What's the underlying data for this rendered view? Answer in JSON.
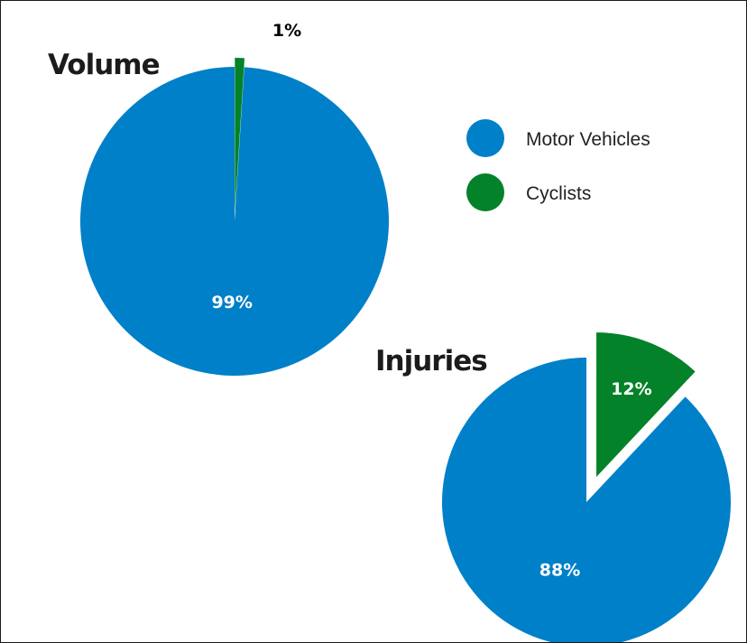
{
  "colors": {
    "motor_vehicles": "#0080c8",
    "cyclists": "#048229",
    "label_inside": "#ffffff",
    "label_outside": "#000000"
  },
  "chart_data": [
    {
      "type": "pie",
      "title": "Volume",
      "slices": [
        {
          "name": "Motor Vehicles",
          "value": 99,
          "label": "99%"
        },
        {
          "name": "Cyclists",
          "value": 1,
          "label": "1%"
        }
      ]
    },
    {
      "type": "pie",
      "title": "Injuries",
      "slices": [
        {
          "name": "Motor Vehicles",
          "value": 88,
          "label": "88%"
        },
        {
          "name": "Cyclists",
          "value": 12,
          "label": "12%"
        }
      ]
    }
  ],
  "legend": {
    "placement": "right",
    "items": [
      {
        "label": "Motor Vehicles",
        "color": "#0080c8"
      },
      {
        "label": "Cyclists",
        "color": "#048229"
      }
    ]
  }
}
